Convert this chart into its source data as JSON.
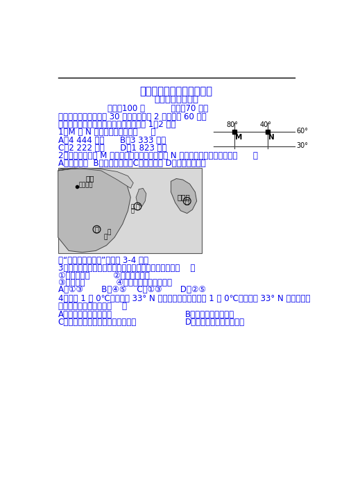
{
  "title1": "昌吉市第一中学教育共同体",
  "title2": "高二地理期末试卷",
  "score_time": "分値：100 分          时间：70 分钟",
  "section1_header": "一、单项选择题：（八 30 小题，每小题 2 分，总计 60 分）",
  "intro_text": "读地球表面某区域的经纬网示意图，回答 1～2 题。",
  "q1": "1．M 和 N 两点的实际距离为（     ）",
  "q1_opts": "A．4 444 千米      B．3 333 千米      C．2 222 千米      D．1 823 千米",
  "q2": "2．若一架飞机从 M 点起飞，沿最短的航线到达 N 点，则飞机飞行的方向为（      ）",
  "q2_ans": "A．一直向东  B．先东北再东南C．一直向南 D．先东南再东北",
  "read_text": "读“东亚部分地区图”，完成 3-4 题。",
  "q3": "3．图中甲、乙、丙三地气候特征差异最明显的表现是（    ）",
  "q3_opts1": "①气温年较差         ②降水量的多少",
  "q3_opts2": "③夏季风向            ④高温期与多雨期不一致",
  "q3_ans": "A．①③       B．④⑤    C．①③       D．②⑤",
  "q4": "4．日本 1 月 0℃等温线与 33° N 纬线基本吃合，而中国 1 月 0℃等温线与 33° N 纬线基本吃",
  "q4_cont": "合，此特征将导致日本（    ）",
  "q4_optA": "A．河流封冻期长于中国",
  "q4_optB": "B．南北温差大于中国",
  "q4_optC": "C．常绿阔叶林的分布纬度比中国高",
  "q4_optD": "D．候鸟南迁时间早于中国",
  "bg_color": "#ffffff",
  "text_color": "#0000ee",
  "black": "#000000"
}
